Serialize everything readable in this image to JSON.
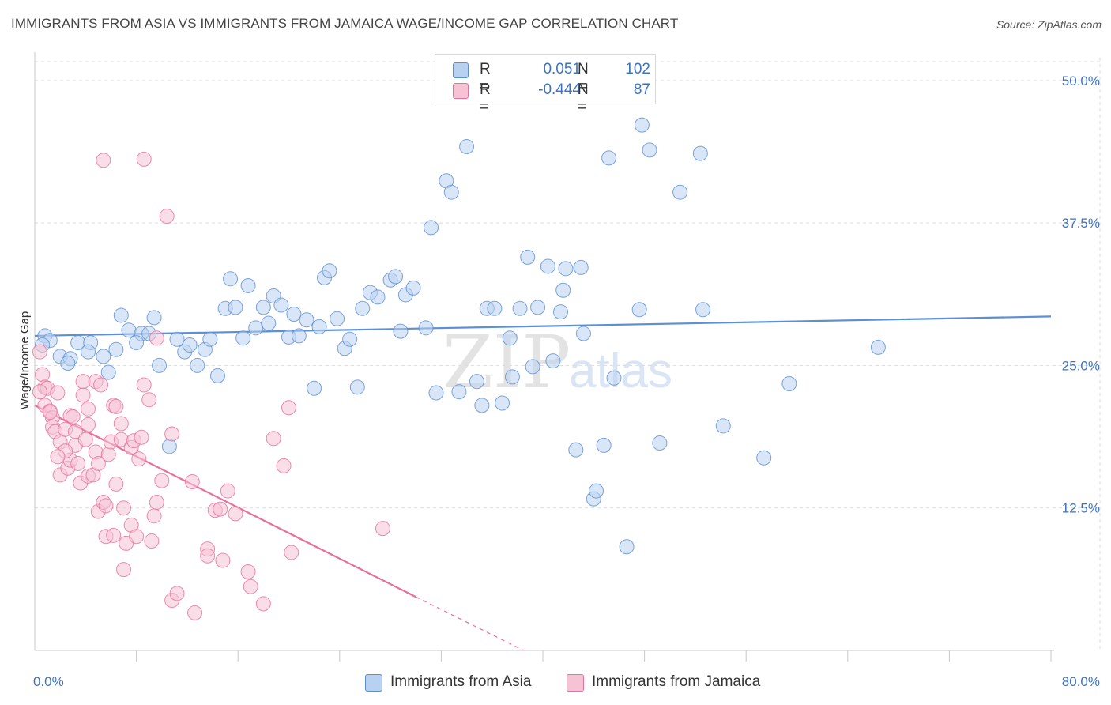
{
  "title": "IMMIGRANTS FROM ASIA VS IMMIGRANTS FROM JAMAICA WAGE/INCOME GAP CORRELATION CHART",
  "source": "Source: ZipAtlas.com",
  "watermark": {
    "zip": "ZIP",
    "atlas": "atlas"
  },
  "colors": {
    "asia": "#5b8fd6",
    "asia_fill": "#b9d1f1",
    "jamaica": "#e86f9b",
    "jamaica_fill": "#f6c3d4",
    "label": "#3b73c4"
  },
  "legend": {
    "rows": [
      {
        "r_label": "R =",
        "r_value": "0.051",
        "n_label": "N =",
        "n_value": "102"
      },
      {
        "r_label": "R =",
        "r_value": "-0.444",
        "n_label": "N =",
        "n_value": "87"
      }
    ]
  },
  "bottom_legend": [
    {
      "label": "Immigrants from Asia"
    },
    {
      "label": "Immigrants from Jamaica"
    }
  ],
  "chart_data": {
    "type": "scatter",
    "title": "IMMIGRANTS FROM ASIA VS IMMIGRANTS FROM JAMAICA WAGE/INCOME GAP CORRELATION CHART",
    "xlabel": "",
    "ylabel": "Wage/Income Gap",
    "xlim": [
      0,
      80
    ],
    "ylim": [
      0,
      52
    ],
    "x_tick_labels": [
      {
        "value": 0,
        "label": "0.0%"
      },
      {
        "value": 80,
        "label": "80.0%"
      }
    ],
    "x_minor_ticks": [
      8,
      16,
      24,
      32,
      40,
      48,
      56,
      64,
      72,
      80
    ],
    "y_ticks": [
      {
        "value": 12.5,
        "label": "12.5%"
      },
      {
        "value": 25.0,
        "label": "25.0%"
      },
      {
        "value": 37.5,
        "label": "37.5%"
      },
      {
        "value": 50.0,
        "label": "50.0%"
      }
    ],
    "grid": true,
    "series": [
      {
        "name": "Immigrants from Asia",
        "color": "#5b8fd6",
        "trend": {
          "x": [
            0,
            80
          ],
          "y": [
            27.6,
            29.3
          ],
          "style": "solid"
        },
        "points": [
          [
            0.8,
            27.6
          ],
          [
            1.2,
            27.2
          ],
          [
            0.6,
            26.8
          ],
          [
            2.0,
            25.8
          ],
          [
            2.8,
            25.6
          ],
          [
            2.6,
            25.2
          ],
          [
            3.4,
            27.0
          ],
          [
            4.4,
            27.0
          ],
          [
            4.2,
            26.2
          ],
          [
            5.4,
            25.8
          ],
          [
            5.8,
            24.4
          ],
          [
            6.4,
            26.4
          ],
          [
            6.8,
            29.4
          ],
          [
            7.4,
            28.1
          ],
          [
            8.4,
            27.8
          ],
          [
            8.0,
            27.0
          ],
          [
            9.0,
            27.8
          ],
          [
            9.4,
            29.2
          ],
          [
            9.8,
            25.0
          ],
          [
            10.6,
            17.9
          ],
          [
            11.2,
            27.3
          ],
          [
            11.8,
            26.2
          ],
          [
            12.2,
            26.8
          ],
          [
            12.8,
            25.0
          ],
          [
            13.4,
            26.4
          ],
          [
            13.8,
            27.3
          ],
          [
            14.4,
            24.1
          ],
          [
            15.0,
            30.0
          ],
          [
            15.4,
            32.6
          ],
          [
            15.8,
            30.1
          ],
          [
            16.4,
            27.4
          ],
          [
            16.8,
            32.0
          ],
          [
            17.4,
            28.3
          ],
          [
            18.0,
            30.1
          ],
          [
            18.4,
            28.7
          ],
          [
            18.8,
            31.1
          ],
          [
            19.4,
            30.3
          ],
          [
            20.0,
            27.5
          ],
          [
            20.4,
            29.5
          ],
          [
            20.8,
            27.6
          ],
          [
            21.4,
            29.0
          ],
          [
            22.0,
            23.0
          ],
          [
            22.4,
            28.4
          ],
          [
            22.8,
            32.7
          ],
          [
            23.2,
            33.3
          ],
          [
            23.8,
            29.1
          ],
          [
            24.4,
            26.5
          ],
          [
            24.8,
            27.3
          ],
          [
            25.4,
            23.1
          ],
          [
            25.8,
            30.0
          ],
          [
            26.4,
            31.4
          ],
          [
            27.0,
            31.0
          ],
          [
            28.0,
            32.5
          ],
          [
            28.4,
            32.8
          ],
          [
            28.8,
            28.0
          ],
          [
            29.2,
            31.2
          ],
          [
            29.8,
            31.8
          ],
          [
            30.8,
            28.3
          ],
          [
            31.2,
            37.1
          ],
          [
            31.6,
            22.6
          ],
          [
            32.4,
            41.2
          ],
          [
            32.8,
            40.2
          ],
          [
            33.4,
            22.7
          ],
          [
            34.0,
            44.2
          ],
          [
            34.8,
            23.6
          ],
          [
            35.2,
            21.5
          ],
          [
            35.6,
            30.0
          ],
          [
            36.2,
            30.0
          ],
          [
            36.8,
            21.7
          ],
          [
            37.4,
            27.4
          ],
          [
            37.6,
            24.0
          ],
          [
            38.2,
            30.0
          ],
          [
            38.8,
            34.5
          ],
          [
            39.2,
            24.9
          ],
          [
            39.6,
            30.1
          ],
          [
            40.4,
            33.7
          ],
          [
            40.8,
            25.4
          ],
          [
            41.4,
            29.7
          ],
          [
            41.6,
            31.6
          ],
          [
            41.8,
            33.5
          ],
          [
            42.6,
            17.6
          ],
          [
            43.0,
            33.6
          ],
          [
            43.2,
            27.8
          ],
          [
            44.0,
            13.3
          ],
          [
            44.2,
            14.0
          ],
          [
            44.8,
            18.0
          ],
          [
            45.2,
            43.2
          ],
          [
            45.6,
            23.9
          ],
          [
            46.6,
            9.1
          ],
          [
            47.6,
            29.9
          ],
          [
            47.8,
            46.1
          ],
          [
            48.4,
            43.9
          ],
          [
            49.2,
            18.2
          ],
          [
            50.8,
            40.2
          ],
          [
            52.4,
            43.6
          ],
          [
            52.6,
            29.9
          ],
          [
            54.2,
            19.7
          ],
          [
            57.4,
            16.9
          ],
          [
            59.4,
            23.4
          ],
          [
            66.4,
            26.6
          ]
        ]
      },
      {
        "name": "Immigrants from Jamaica",
        "color": "#e86f9b",
        "trend": {
          "x": [
            0,
            30
          ],
          "y": [
            21.5,
            4.7
          ],
          "style": "solid",
          "extension": {
            "x": [
              30,
              38.5
            ],
            "y": [
              4.7,
              0
            ]
          }
        },
        "points": [
          [
            0.4,
            26.2
          ],
          [
            0.6,
            24.2
          ],
          [
            0.8,
            23.1
          ],
          [
            0.8,
            21.5
          ],
          [
            1.0,
            23.0
          ],
          [
            1.2,
            21.0
          ],
          [
            1.4,
            20.4
          ],
          [
            1.4,
            19.6
          ],
          [
            1.6,
            19.2
          ],
          [
            1.8,
            22.6
          ],
          [
            2.0,
            18.3
          ],
          [
            2.0,
            15.4
          ],
          [
            2.4,
            19.4
          ],
          [
            2.6,
            16.0
          ],
          [
            2.8,
            16.7
          ],
          [
            2.8,
            20.6
          ],
          [
            3.0,
            20.5
          ],
          [
            3.2,
            18.0
          ],
          [
            3.4,
            16.4
          ],
          [
            3.6,
            14.7
          ],
          [
            3.8,
            22.4
          ],
          [
            3.8,
            23.6
          ],
          [
            4.2,
            15.3
          ],
          [
            4.2,
            19.8
          ],
          [
            4.2,
            21.2
          ],
          [
            4.6,
            15.4
          ],
          [
            4.8,
            17.4
          ],
          [
            4.8,
            23.6
          ],
          [
            5.0,
            12.2
          ],
          [
            5.2,
            23.3
          ],
          [
            5.4,
            13.0
          ],
          [
            5.6,
            12.7
          ],
          [
            5.6,
            10.0
          ],
          [
            5.8,
            17.2
          ],
          [
            6.0,
            18.3
          ],
          [
            6.2,
            10.1
          ],
          [
            6.2,
            21.5
          ],
          [
            6.4,
            21.4
          ],
          [
            6.8,
            19.9
          ],
          [
            6.8,
            18.5
          ],
          [
            7.0,
            12.5
          ],
          [
            7.0,
            7.1
          ],
          [
            7.2,
            9.4
          ],
          [
            7.6,
            17.8
          ],
          [
            7.6,
            11.0
          ],
          [
            7.8,
            18.4
          ],
          [
            8.0,
            10.0
          ],
          [
            8.2,
            16.8
          ],
          [
            8.4,
            18.7
          ],
          [
            8.6,
            23.3
          ],
          [
            9.0,
            22.0
          ],
          [
            9.2,
            9.6
          ],
          [
            9.4,
            11.8
          ],
          [
            9.6,
            27.4
          ],
          [
            10.0,
            14.9
          ],
          [
            10.4,
            38.1
          ],
          [
            10.8,
            19.0
          ],
          [
            10.8,
            4.4
          ],
          [
            11.2,
            5.0
          ],
          [
            12.4,
            14.8
          ],
          [
            12.6,
            3.3
          ],
          [
            13.6,
            8.9
          ],
          [
            13.6,
            8.3
          ],
          [
            14.2,
            12.3
          ],
          [
            14.6,
            12.4
          ],
          [
            14.8,
            7.9
          ],
          [
            15.2,
            14.0
          ],
          [
            15.8,
            12.0
          ],
          [
            16.8,
            6.9
          ],
          [
            17.0,
            5.6
          ],
          [
            18.0,
            4.1
          ],
          [
            18.8,
            18.6
          ],
          [
            19.6,
            16.2
          ],
          [
            20.0,
            21.3
          ],
          [
            20.2,
            8.6
          ],
          [
            27.4,
            10.7
          ],
          [
            5.4,
            43.0
          ],
          [
            8.6,
            43.1
          ],
          [
            1.2,
            20.9
          ],
          [
            0.4,
            22.7
          ],
          [
            2.4,
            17.5
          ],
          [
            3.2,
            19.2
          ],
          [
            5.0,
            16.4
          ],
          [
            6.4,
            14.6
          ],
          [
            9.6,
            13.0
          ],
          [
            1.8,
            17.0
          ],
          [
            4.0,
            18.5
          ]
        ]
      }
    ]
  }
}
